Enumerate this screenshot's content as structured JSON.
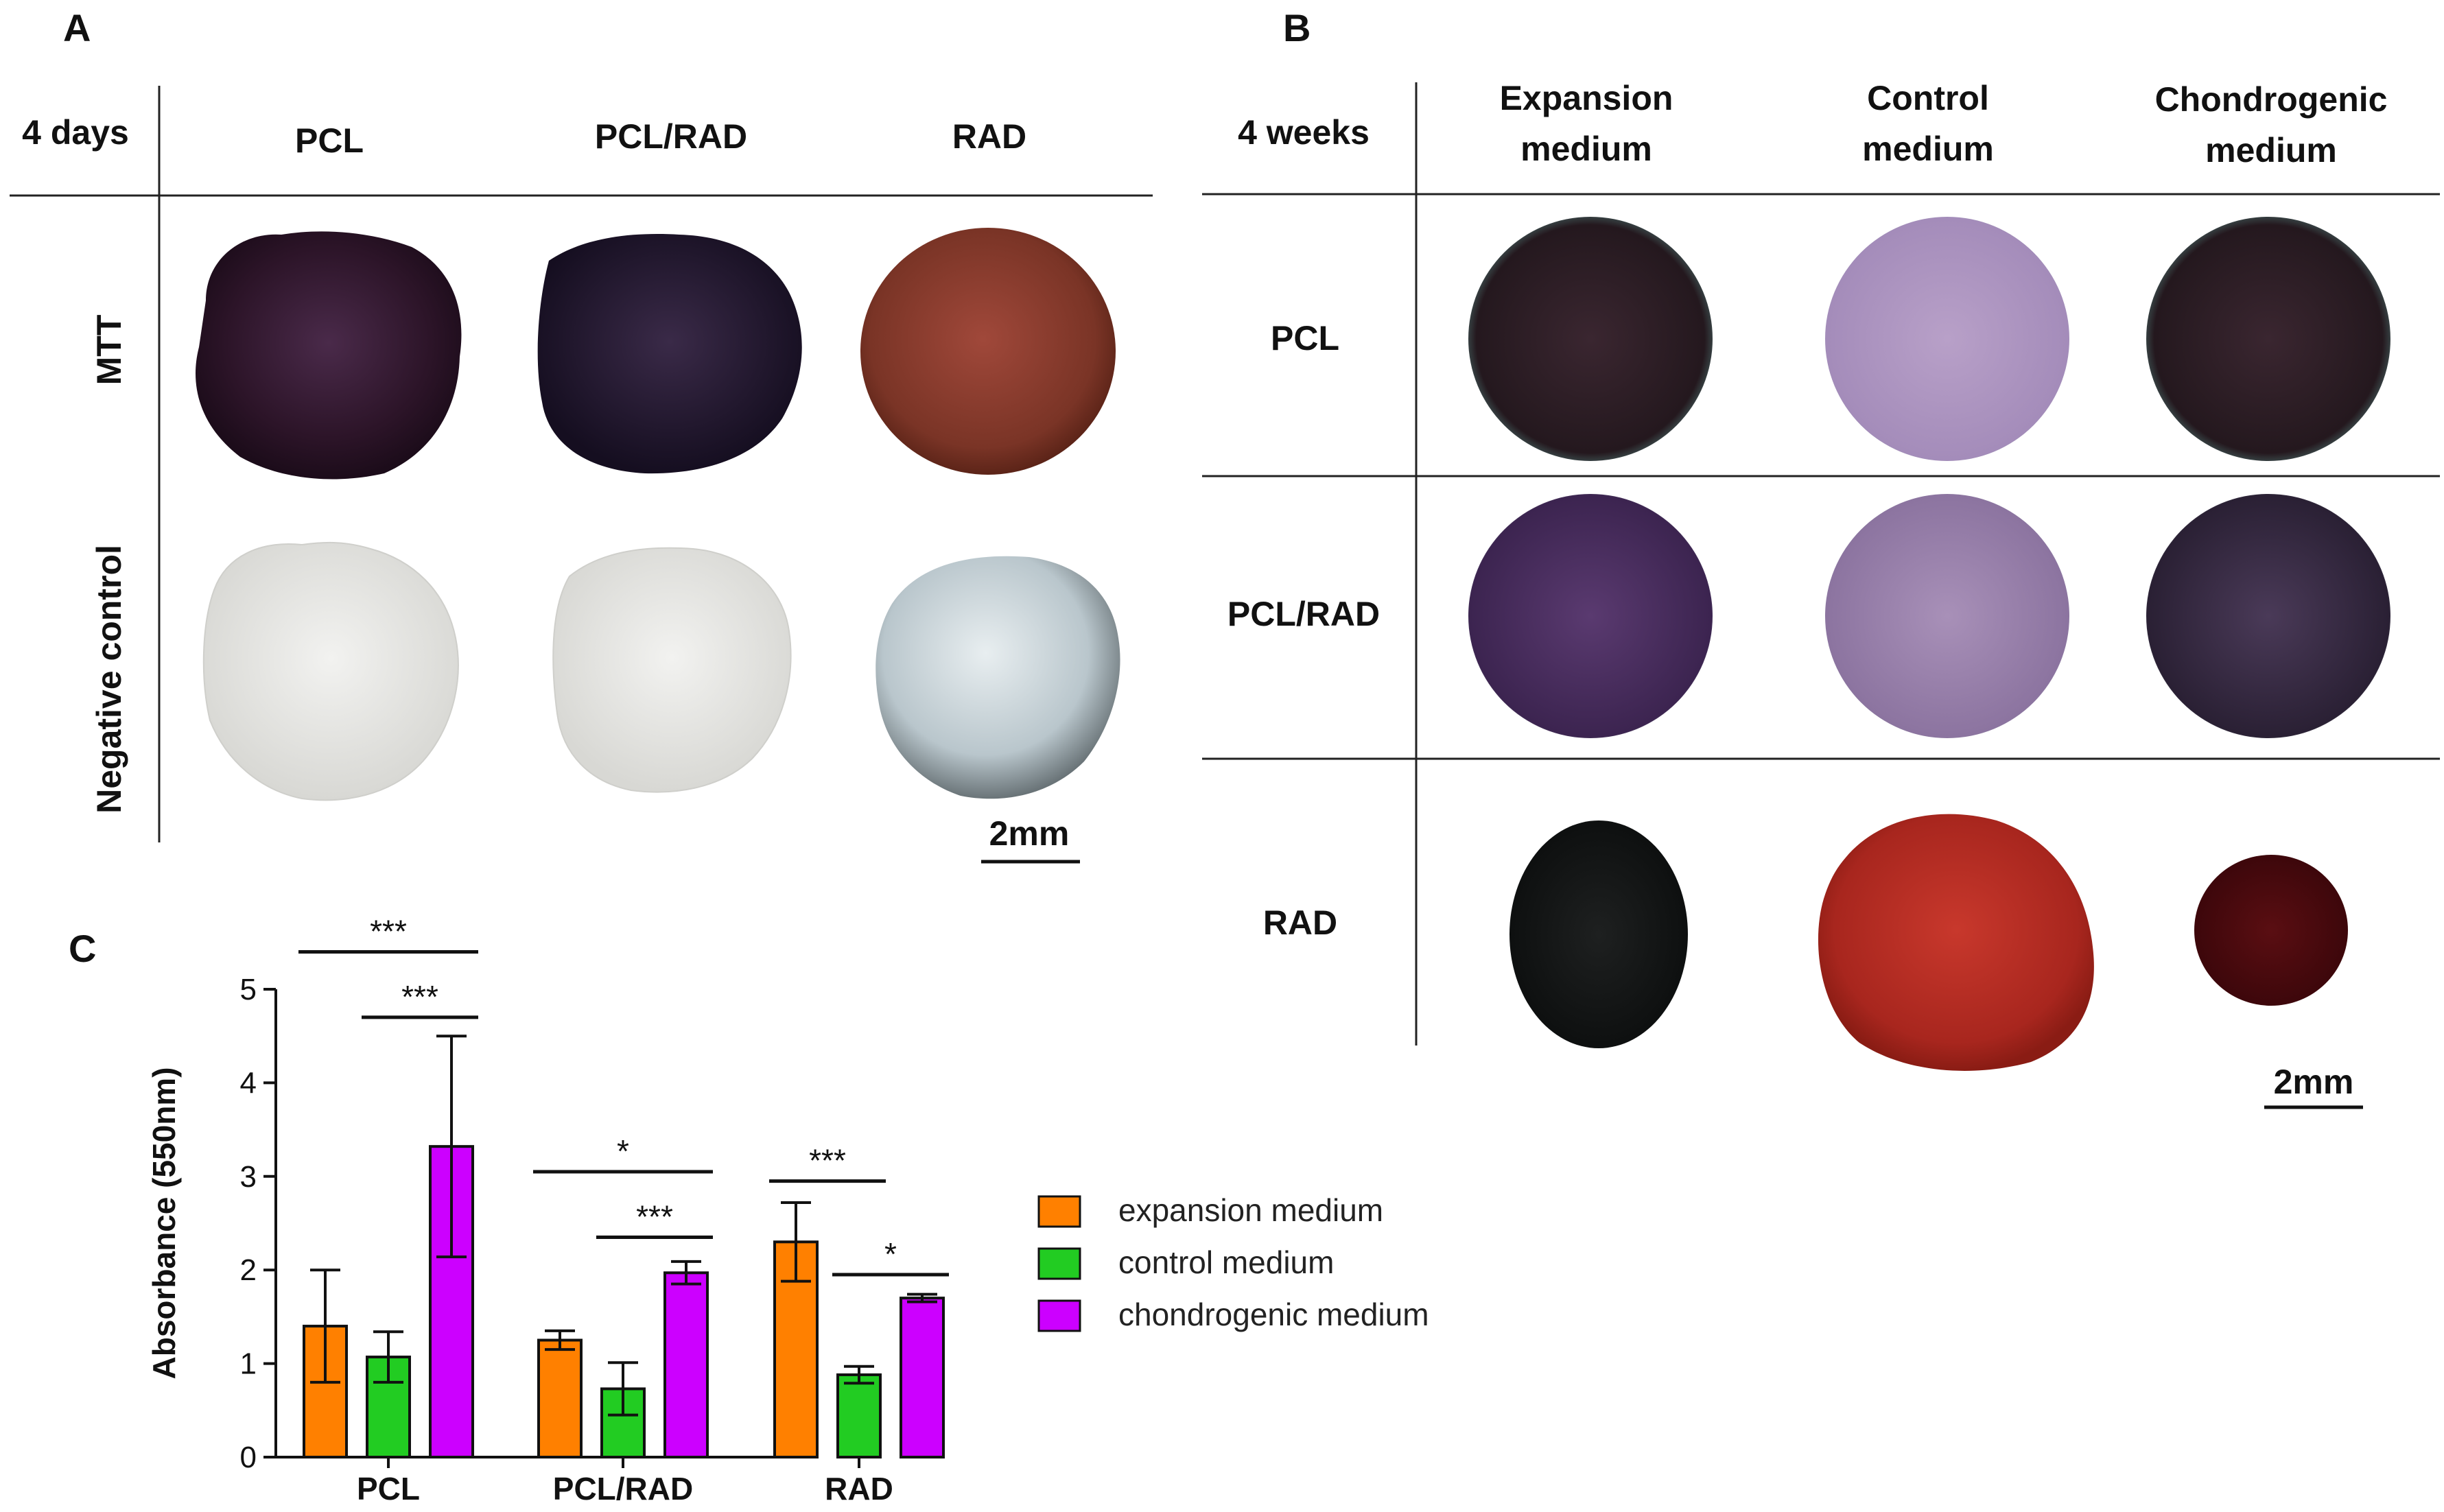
{
  "panel_a": {
    "letter": "A",
    "corner_label": "4 days",
    "columns": [
      "PCL",
      "PCL/RAD",
      "RAD"
    ],
    "rows": [
      "MTT",
      "Negative control"
    ],
    "scale_bar": "2mm"
  },
  "panel_b": {
    "letter": "B",
    "corner_label": "4 weeks",
    "columns": [
      {
        "line1": "Expansion",
        "line2": "medium"
      },
      {
        "line1": "Control",
        "line2": "medium"
      },
      {
        "line1": "Chondrogenic",
        "line2": "medium"
      }
    ],
    "rows": [
      "PCL",
      "PCL/RAD",
      "RAD"
    ],
    "scale_bar": "2mm"
  },
  "panel_c": {
    "letter": "C"
  },
  "colors": {
    "expansion": "#ff8000",
    "control": "#22cc22",
    "chondrogenic": "#cc00ff"
  },
  "chart_data": {
    "type": "bar",
    "ylabel": "Absorbance (550nm)",
    "xlabel": "",
    "ylim": [
      0,
      5
    ],
    "yticks": [
      0,
      1,
      2,
      3,
      4,
      5
    ],
    "categories": [
      "PCL",
      "PCL/RAD",
      "RAD"
    ],
    "series": [
      {
        "name": "expansion medium",
        "values": [
          1.4,
          1.25,
          2.3
        ],
        "errors": [
          0.6,
          0.1,
          0.42
        ]
      },
      {
        "name": "control medium",
        "values": [
          1.07,
          0.73,
          0.88
        ],
        "errors": [
          0.27,
          0.28,
          0.09
        ]
      },
      {
        "name": "chondrogenic medium",
        "values": [
          3.32,
          1.97,
          1.7
        ],
        "errors": [
          1.18,
          0.12,
          0.04
        ]
      }
    ],
    "significance": [
      {
        "category": 0,
        "from": 0,
        "to": 2,
        "level": 5.4,
        "label": "***"
      },
      {
        "category": 0,
        "from": 1,
        "to": 2,
        "level": 4.7,
        "label": "***"
      },
      {
        "category": 1,
        "from": 0,
        "to": 2,
        "level": 3.05,
        "label": "*"
      },
      {
        "category": 1,
        "from": 1,
        "to": 2,
        "level": 2.35,
        "label": "***"
      },
      {
        "category": 2,
        "from": 0,
        "to": 1,
        "level": 2.95,
        "label": "***"
      },
      {
        "category": 2,
        "from": 1,
        "to": 2,
        "level": 1.95,
        "label": "*"
      }
    ]
  }
}
